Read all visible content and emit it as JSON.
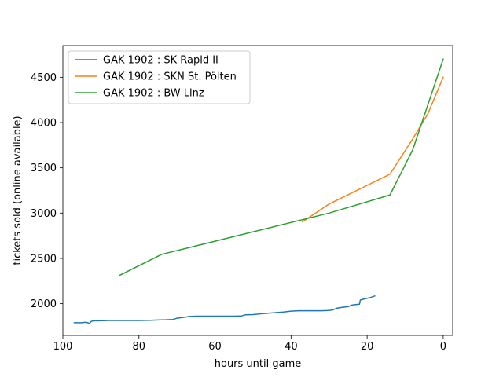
{
  "chart_data": {
    "type": "line",
    "title": "",
    "xlabel": "hours until game",
    "ylabel": "tickets sold (online available)",
    "xlim": [
      100,
      -2.5
    ],
    "ylim": [
      1650,
      4850
    ],
    "x_inverted": true,
    "xticks": [
      100,
      80,
      60,
      40,
      20,
      0
    ],
    "yticks": [
      2000,
      2500,
      3000,
      3500,
      4000,
      4500
    ],
    "grid": false,
    "legend_position": "top-left",
    "series": [
      {
        "name": "GAK 1902 : SK Rapid II",
        "color": "#1f77b4",
        "points": [
          [
            97,
            1790
          ],
          [
            95,
            1790
          ],
          [
            94,
            1795
          ],
          [
            93.5,
            1790
          ],
          [
            93,
            1782
          ],
          [
            92.5,
            1805
          ],
          [
            92,
            1810
          ],
          [
            90,
            1812
          ],
          [
            88,
            1815
          ],
          [
            85,
            1815
          ],
          [
            80,
            1815
          ],
          [
            77,
            1817
          ],
          [
            75,
            1820
          ],
          [
            73,
            1822
          ],
          [
            71,
            1826
          ],
          [
            70,
            1840
          ],
          [
            69,
            1845
          ],
          [
            68,
            1850
          ],
          [
            67,
            1858
          ],
          [
            65,
            1862
          ],
          [
            60,
            1862
          ],
          [
            55,
            1862
          ],
          [
            53,
            1865
          ],
          [
            52,
            1878
          ],
          [
            50,
            1880
          ],
          [
            48,
            1888
          ],
          [
            46,
            1895
          ],
          [
            44,
            1902
          ],
          [
            42,
            1908
          ],
          [
            40,
            1918
          ],
          [
            38,
            1922
          ],
          [
            35,
            1922
          ],
          [
            32,
            1922
          ],
          [
            30,
            1925
          ],
          [
            29,
            1932
          ],
          [
            28,
            1950
          ],
          [
            27,
            1958
          ],
          [
            25,
            1968
          ],
          [
            24,
            1985
          ],
          [
            23,
            1990
          ],
          [
            22,
            1995
          ],
          [
            21.8,
            2040
          ],
          [
            21,
            2050
          ],
          [
            20,
            2060
          ],
          [
            19,
            2070
          ],
          [
            18,
            2085
          ]
        ]
      },
      {
        "name": "GAK 1902 : SKN St. Pölten",
        "color": "#ff7f0e",
        "points": [
          [
            37,
            2905
          ],
          [
            35,
            2960
          ],
          [
            30,
            3100
          ],
          [
            14,
            3430
          ],
          [
            8,
            3820
          ],
          [
            4,
            4100
          ],
          [
            0,
            4500
          ]
        ]
      },
      {
        "name": "GAK 1902 : BW Linz",
        "color": "#2ca02c",
        "points": [
          [
            85,
            2315
          ],
          [
            74,
            2545
          ],
          [
            30,
            3000
          ],
          [
            14,
            3200
          ],
          [
            8,
            3700
          ],
          [
            0,
            4700
          ]
        ]
      }
    ]
  }
}
